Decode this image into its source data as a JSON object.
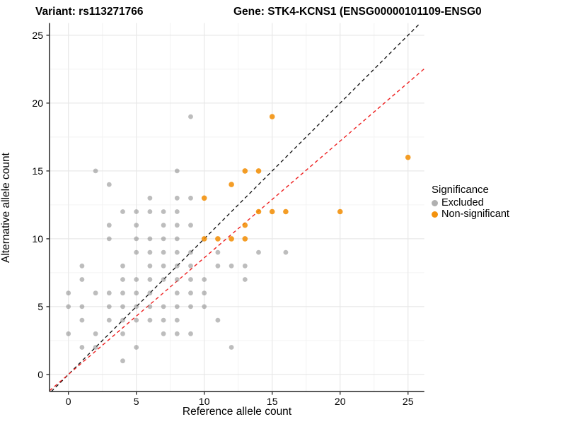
{
  "titles": {
    "left": "Variant: rs113271766",
    "right": "Gene: STK4-KCNS1 (ENSG00000101109-ENSG0"
  },
  "chart_data": {
    "type": "scatter",
    "title_left": "Variant: rs113271766",
    "title_right_truncated": "Gene: STK4-KCNS1 (ENSG00000101109-ENSG0",
    "xlabel": "Reference allele count",
    "ylabel": "Alternative allele count",
    "x_ticks": [
      0,
      5,
      10,
      15,
      20,
      25
    ],
    "y_ticks": [
      0,
      5,
      10,
      15,
      20,
      25
    ],
    "x_minor": [
      2.5,
      7.5,
      12.5,
      17.5,
      22.5
    ],
    "y_minor": [
      2.5,
      7.5,
      12.5,
      17.5,
      22.5
    ],
    "xlim": [
      -1.39,
      26.2
    ],
    "ylim": [
      -1.26,
      25.9
    ],
    "grid": "major-and-minor",
    "legend": {
      "title": "Significance",
      "position": "right",
      "items": [
        {
          "label": "Excluded",
          "color": "#7b7b7b",
          "opacity": 0.5
        },
        {
          "label": "Non-significant",
          "color": "#f28c00",
          "opacity": 0.85
        }
      ]
    },
    "series": [
      {
        "name": "Excluded",
        "color": "#7b7b7b",
        "opacity": 0.5,
        "radius": 3.4,
        "points": [
          [
            9,
            19
          ],
          [
            2,
            15
          ],
          [
            8,
            15
          ],
          [
            3,
            14
          ],
          [
            6,
            13
          ],
          [
            8,
            13
          ],
          [
            9,
            13
          ],
          [
            4,
            12
          ],
          [
            5,
            12
          ],
          [
            6,
            12
          ],
          [
            7,
            12
          ],
          [
            8,
            12
          ],
          [
            3,
            11
          ],
          [
            5,
            11
          ],
          [
            7,
            11
          ],
          [
            8,
            11
          ],
          [
            9,
            11
          ],
          [
            3,
            10
          ],
          [
            5,
            10
          ],
          [
            6,
            10
          ],
          [
            7,
            10
          ],
          [
            8,
            10
          ],
          [
            5,
            9
          ],
          [
            6,
            9
          ],
          [
            7,
            9
          ],
          [
            8,
            9
          ],
          [
            9,
            9
          ],
          [
            11,
            9
          ],
          [
            14,
            9
          ],
          [
            16,
            9
          ],
          [
            1,
            8
          ],
          [
            4,
            8
          ],
          [
            6,
            8
          ],
          [
            7,
            8
          ],
          [
            8,
            8
          ],
          [
            9,
            8
          ],
          [
            11,
            8
          ],
          [
            12,
            8
          ],
          [
            13,
            8
          ],
          [
            1,
            7
          ],
          [
            4,
            7
          ],
          [
            5,
            7
          ],
          [
            6,
            7
          ],
          [
            7,
            7
          ],
          [
            8,
            7
          ],
          [
            9,
            7
          ],
          [
            10,
            7
          ],
          [
            13,
            7
          ],
          [
            0,
            6
          ],
          [
            2,
            6
          ],
          [
            3,
            6
          ],
          [
            4,
            6
          ],
          [
            5,
            6
          ],
          [
            6,
            6
          ],
          [
            8,
            6
          ],
          [
            9,
            6
          ],
          [
            10,
            6
          ],
          [
            0,
            5
          ],
          [
            1,
            5
          ],
          [
            3,
            5
          ],
          [
            4,
            5
          ],
          [
            5,
            5
          ],
          [
            6,
            5
          ],
          [
            7,
            5
          ],
          [
            8,
            5
          ],
          [
            9,
            5
          ],
          [
            10,
            5
          ],
          [
            1,
            4
          ],
          [
            3,
            4
          ],
          [
            4,
            4
          ],
          [
            5,
            4
          ],
          [
            6,
            4
          ],
          [
            7,
            4
          ],
          [
            8,
            4
          ],
          [
            11,
            4
          ],
          [
            0,
            3
          ],
          [
            2,
            3
          ],
          [
            4,
            3
          ],
          [
            7,
            3
          ],
          [
            8,
            3
          ],
          [
            9,
            3
          ],
          [
            1,
            2
          ],
          [
            2,
            2
          ],
          [
            5,
            2
          ],
          [
            12,
            2
          ],
          [
            4,
            1
          ]
        ]
      },
      {
        "name": "Non-significant",
        "color": "#f28c00",
        "opacity": 0.85,
        "radius": 3.8,
        "points": [
          [
            10,
            10
          ],
          [
            11,
            10
          ],
          [
            12,
            10
          ],
          [
            13,
            10
          ],
          [
            13,
            11
          ],
          [
            14,
            12
          ],
          [
            15,
            12
          ],
          [
            16,
            12
          ],
          [
            20,
            12
          ],
          [
            10,
            13
          ],
          [
            12,
            14
          ],
          [
            13,
            15
          ],
          [
            14,
            15
          ],
          [
            25,
            16
          ],
          [
            15,
            19
          ]
        ]
      }
    ],
    "lines": [
      {
        "name": "identity",
        "slope": 1.0,
        "intercept": 0,
        "color": "#1a1a1a",
        "dash": "5,4"
      },
      {
        "name": "fit",
        "slope": 0.86,
        "intercept": 0,
        "color": "#ee2222",
        "dash": "5,4"
      }
    ],
    "axis_color": "#333333",
    "grid_major_color": "#e8e8e8",
    "grid_minor_color": "#f3f3f3",
    "tick_label_size": 14
  }
}
